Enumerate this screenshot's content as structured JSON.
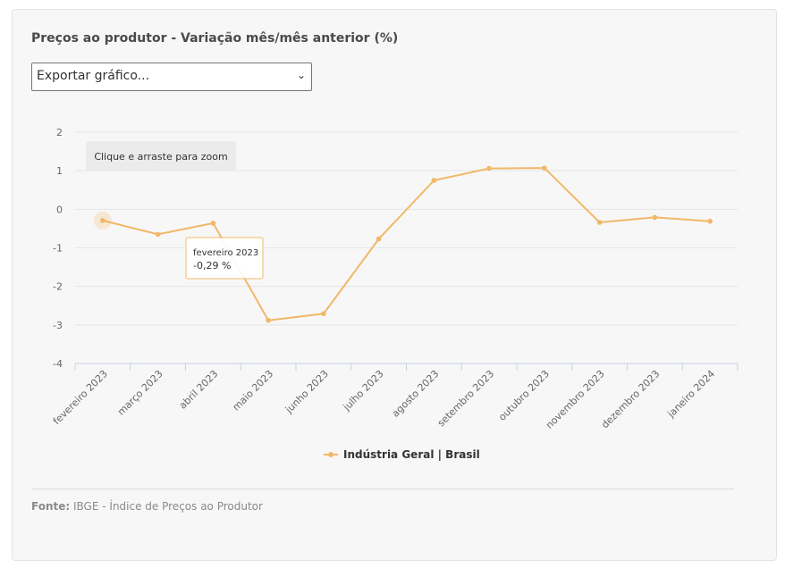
{
  "title": "Preços ao produtor - Variação mês/mês anterior (%)",
  "export_select": {
    "value": "Exportar gráfico..."
  },
  "zoom_hint": "Clique e arraste para zoom",
  "tooltip": {
    "label": "fevereiro 2023",
    "value": "-0,29 %"
  },
  "source": {
    "label": "Fonte:",
    "text": "IBGE - Índice de Preços ao Produtor"
  },
  "chart_data": {
    "type": "line",
    "categories": [
      "fevereiro 2023",
      "março 2023",
      "abril 2023",
      "maio 2023",
      "junho 2023",
      "julho 2023",
      "agosto 2023",
      "setembro 2023",
      "outubro 2023",
      "novembro 2023",
      "dezembro 2023",
      "janeiro 2024"
    ],
    "series": [
      {
        "name": "Indústria Geral | Brasil",
        "values": [
          -0.29,
          -0.65,
          -0.36,
          -2.88,
          -2.71,
          -0.77,
          0.75,
          1.06,
          1.07,
          -0.34,
          -0.21,
          -0.31
        ]
      }
    ],
    "ylim": [
      -4,
      2
    ],
    "yticks": [
      "2",
      "1",
      "0",
      "-1",
      "-2",
      "-3",
      "-4"
    ],
    "grid": true,
    "legend": "bottom-center",
    "colors": {
      "series": "#f0b868",
      "grid": "#e6e6e6",
      "axis": "#c7d3e8"
    }
  }
}
